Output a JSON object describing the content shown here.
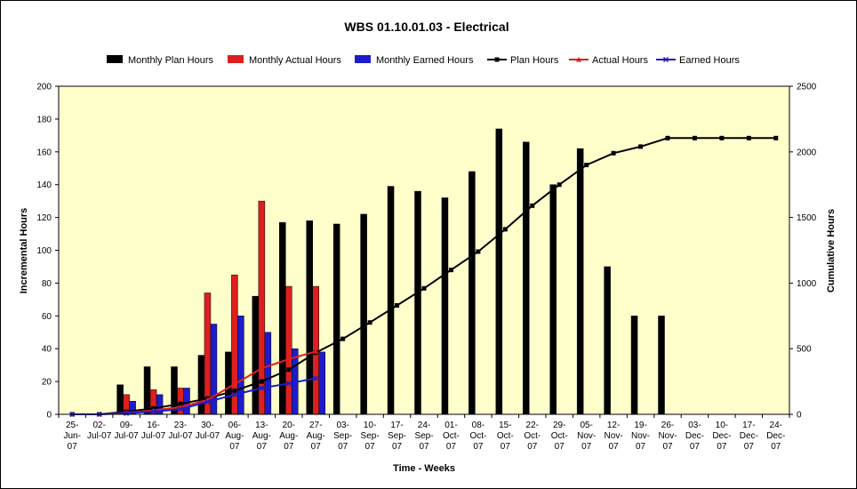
{
  "chart_data": {
    "type": "bar",
    "title": "WBS 01.10.01.03 - Electrical",
    "xlabel": "Time - Weeks",
    "ylabel": "Incremental Hours",
    "y2label": "Cumulative Hours",
    "ylim": [
      0,
      200
    ],
    "y2lim": [
      0,
      2500
    ],
    "yticks": [
      "0",
      "20",
      "40",
      "60",
      "80",
      "100",
      "120",
      "140",
      "160",
      "180",
      "200"
    ],
    "y2ticks": [
      "0",
      "500",
      "1000",
      "1500",
      "2000",
      "2500"
    ],
    "grid": false,
    "legend_position": "top",
    "categories": [
      [
        "25-",
        "Jun-",
        "07"
      ],
      [
        "02-",
        "Jul-07"
      ],
      [
        "09-",
        "Jul-07"
      ],
      [
        "16-",
        "Jul-07"
      ],
      [
        "23-",
        "Jul-07"
      ],
      [
        "30-",
        "Jul-07"
      ],
      [
        "06-",
        "Aug-",
        "07"
      ],
      [
        "13-",
        "Aug-",
        "07"
      ],
      [
        "20-",
        "Aug-",
        "07"
      ],
      [
        "27-",
        "Aug-",
        "07"
      ],
      [
        "03-",
        "Sep-",
        "07"
      ],
      [
        "10-",
        "Sep-",
        "07"
      ],
      [
        "17-",
        "Sep-",
        "07"
      ],
      [
        "24-",
        "Sep-",
        "07"
      ],
      [
        "01-",
        "Oct-",
        "07"
      ],
      [
        "08-",
        "Oct-",
        "07"
      ],
      [
        "15-",
        "Oct-",
        "07"
      ],
      [
        "22-",
        "Oct-",
        "07"
      ],
      [
        "29-",
        "Oct-",
        "07"
      ],
      [
        "05-",
        "Nov-",
        "07"
      ],
      [
        "12-",
        "Nov-",
        "07"
      ],
      [
        "19-",
        "Nov-",
        "07"
      ],
      [
        "26-",
        "Nov-",
        "07"
      ],
      [
        "03-",
        "Dec-",
        "07"
      ],
      [
        "10-",
        "Dec-",
        "07"
      ],
      [
        "17-",
        "Dec-",
        "07"
      ],
      [
        "24-",
        "Dec-",
        "07"
      ]
    ],
    "bar_series": [
      {
        "name": "Monthly Plan Hours",
        "color": "#000000",
        "values": [
          0,
          0,
          18,
          29,
          29,
          36,
          38,
          72,
          117,
          118,
          116,
          122,
          139,
          136,
          132,
          148,
          174,
          166,
          140,
          162,
          90,
          60,
          60,
          0,
          0,
          0,
          0
        ]
      },
      {
        "name": "Monthly Actual Hours",
        "color": "#dd1f1f",
        "values": [
          0,
          0,
          12,
          15,
          16,
          74,
          85,
          130,
          78,
          78,
          null,
          null,
          null,
          null,
          null,
          null,
          null,
          null,
          null,
          null,
          null,
          null,
          null,
          null,
          null,
          null,
          null
        ]
      },
      {
        "name": "Monthly Earned Hours",
        "color": "#1c1ccc",
        "values": [
          0,
          0,
          8,
          12,
          16,
          55,
          60,
          50,
          40,
          38,
          null,
          null,
          null,
          null,
          null,
          null,
          null,
          null,
          null,
          null,
          null,
          null,
          null,
          null,
          null,
          null,
          null
        ]
      }
    ],
    "line_series": [
      {
        "name": "Plan Hours",
        "color": "#000000",
        "marker": "square",
        "axis": "y2",
        "values": [
          0,
          0,
          20,
          45,
          80,
          120,
          180,
          250,
          340,
          470,
          575,
          700,
          830,
          960,
          1100,
          1240,
          1410,
          1590,
          1750,
          1900,
          1990,
          2040,
          2105,
          2105,
          2105,
          2105,
          2105
        ]
      },
      {
        "name": "Actual Hours",
        "color": "#dd1f1f",
        "marker": "triangle",
        "axis": "y2",
        "values": [
          0,
          0,
          12,
          30,
          55,
          110,
          230,
          350,
          420,
          480,
          null,
          null,
          null,
          null,
          null,
          null,
          null,
          null,
          null,
          null,
          null,
          null,
          null,
          null,
          null,
          null,
          null
        ]
      },
      {
        "name": "Earned Hours",
        "color": "#1c1ccc",
        "marker": "x",
        "axis": "y2",
        "values": [
          0,
          0,
          8,
          20,
          40,
          95,
          150,
          200,
          235,
          275,
          null,
          null,
          null,
          null,
          null,
          null,
          null,
          null,
          null,
          null,
          null,
          null,
          null,
          null,
          null,
          null,
          null
        ]
      }
    ]
  }
}
